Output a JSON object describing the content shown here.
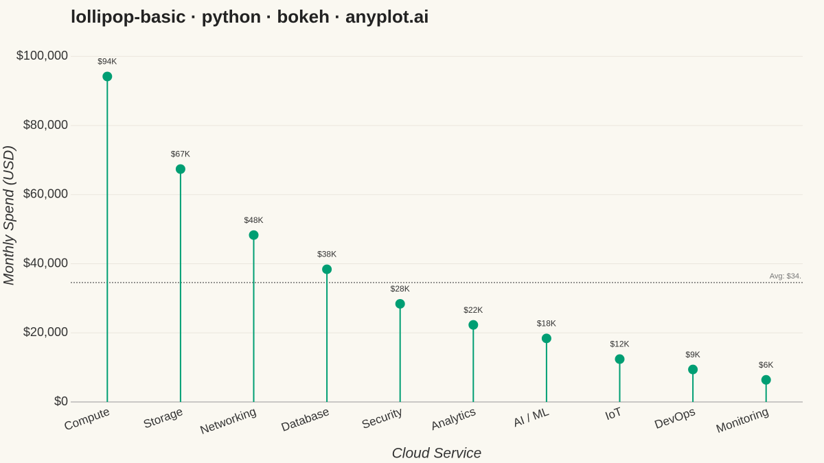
{
  "chart_data": {
    "type": "lollipop",
    "title": "lollipop-basic · python · bokeh · anyplot.ai",
    "x_label": "Cloud Service",
    "y_label": "Monthly Spend (USD)",
    "categories": [
      "Compute",
      "Storage",
      "Networking",
      "Database",
      "Security",
      "Analytics",
      "AI / ML",
      "IoT",
      "DevOps",
      "Monitoring"
    ],
    "values": [
      94200,
      67400,
      48300,
      38400,
      28400,
      22300,
      18400,
      12400,
      9400,
      6400
    ],
    "value_labels": [
      "$94K",
      "$67K",
      "$48K",
      "$38K",
      "$28K",
      "$22K",
      "$18K",
      "$12K",
      "$9K",
      "$6K"
    ],
    "color": "#009e73",
    "ylim": [
      0,
      108000
    ],
    "yticks": [
      {
        "value": 0,
        "label": "$0"
      },
      {
        "value": 20000,
        "label": "$20,000"
      },
      {
        "value": 40000,
        "label": "$40,000"
      },
      {
        "value": 60000,
        "label": "$60,000"
      },
      {
        "value": 80000,
        "label": "$80,000"
      },
      {
        "value": 100000,
        "label": "$100,000"
      }
    ],
    "grid": true,
    "average_line": {
      "value": 34560,
      "label": "Avg: $34."
    }
  }
}
